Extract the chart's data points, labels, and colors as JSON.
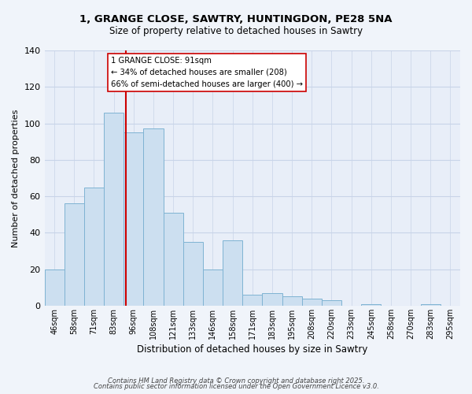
{
  "title_line1": "1, GRANGE CLOSE, SAWTRY, HUNTINGDON, PE28 5NA",
  "title_line2": "Size of property relative to detached houses in Sawtry",
  "xlabel": "Distribution of detached houses by size in Sawtry",
  "ylabel": "Number of detached properties",
  "categories": [
    "46sqm",
    "58sqm",
    "71sqm",
    "83sqm",
    "96sqm",
    "108sqm",
    "121sqm",
    "133sqm",
    "146sqm",
    "158sqm",
    "171sqm",
    "183sqm",
    "195sqm",
    "208sqm",
    "220sqm",
    "233sqm",
    "245sqm",
    "258sqm",
    "270sqm",
    "283sqm",
    "295sqm"
  ],
  "values": [
    20,
    56,
    65,
    106,
    95,
    97,
    51,
    35,
    20,
    36,
    6,
    7,
    5,
    4,
    3,
    0,
    1,
    0,
    0,
    1,
    0
  ],
  "bar_color": "#ccdff0",
  "bar_edge_color": "#7fb3d3",
  "ylim": [
    0,
    140
  ],
  "yticks": [
    0,
    20,
    40,
    60,
    80,
    100,
    120,
    140
  ],
  "vline_position": 3.615,
  "annotation_title": "1 GRANGE CLOSE: 91sqm",
  "annotation_line1": "← 34% of detached houses are smaller (208)",
  "annotation_line2": "66% of semi-detached houses are larger (400) →",
  "footer_line1": "Contains HM Land Registry data © Crown copyright and database right 2025.",
  "footer_line2": "Contains public sector information licensed under the Open Government Licence v3.0.",
  "background_color": "#f0f4fa",
  "plot_bg_color": "#e8eef8",
  "grid_color": "#c8d4e8",
  "vertical_line_color": "#cc0000",
  "annotation_box_color": "#ffffff",
  "annotation_box_edge": "#cc0000"
}
